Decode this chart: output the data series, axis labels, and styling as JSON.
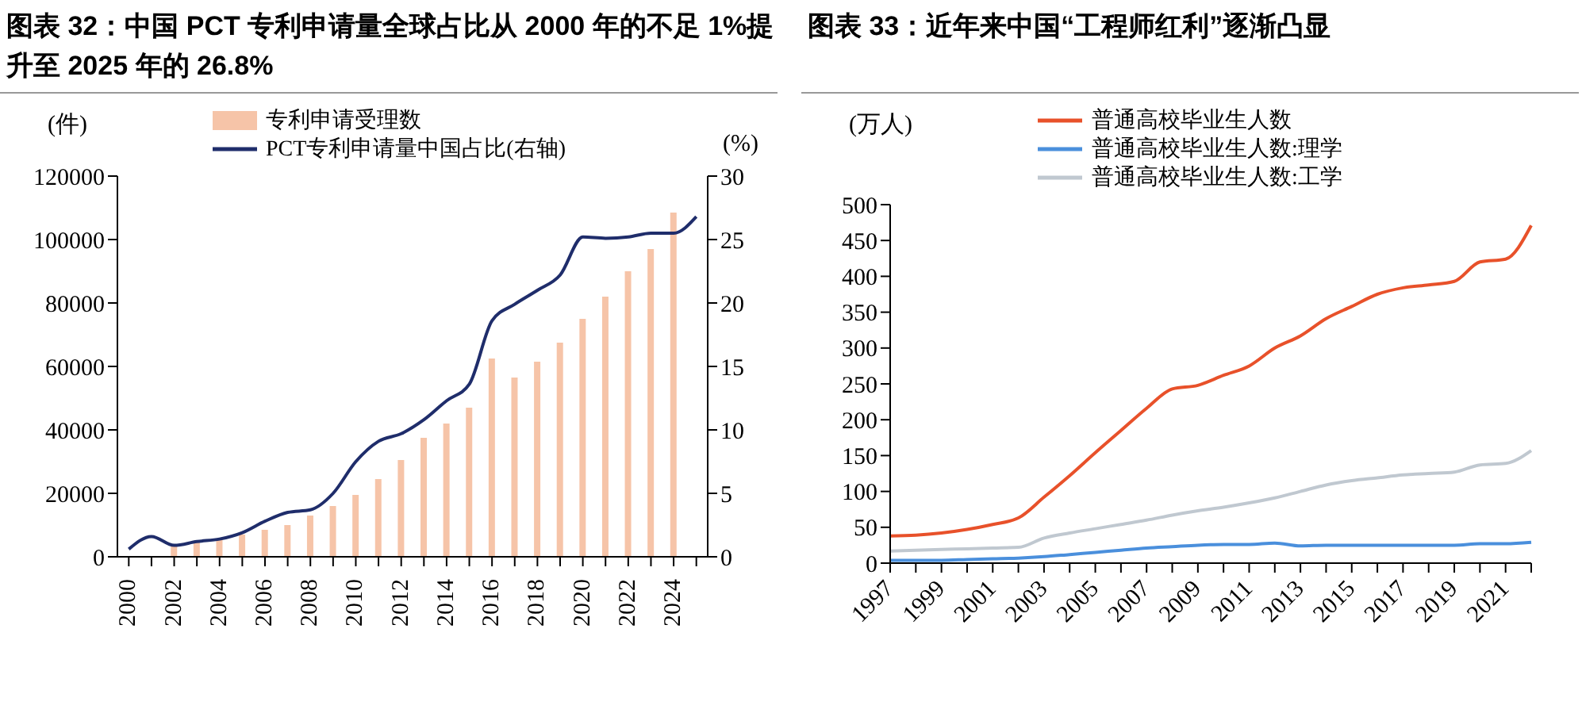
{
  "chart_data": [
    {
      "type": "bar",
      "title": "图表 32：中国 PCT 专利申请量全球占比从 2000 年的不足 1%提升至 2025 年的 26.8%",
      "ylabel": "(件)",
      "y2label": "(%)",
      "categories": [
        "2000",
        null,
        "2002",
        null,
        "2004",
        null,
        "2006",
        null,
        "2008",
        null,
        "2010",
        null,
        "2012",
        null,
        "2014",
        null,
        "2016",
        null,
        "2018",
        null,
        "2020",
        null,
        "2022",
        null,
        "2024",
        null
      ],
      "series": [
        {
          "name": "专利申请受理数",
          "color": "#f6c4a8",
          "values": [
            null,
            null,
            3500,
            5000,
            5500,
            7000,
            8500,
            10000,
            13000,
            16000,
            19500,
            24500,
            30500,
            37500,
            42000,
            47000,
            62500,
            56500,
            61500,
            67500,
            75000,
            82000,
            90000,
            97000,
            108500,
            null
          ]
        },
        {
          "name": "PCT专利申请量中国占比(右轴)",
          "type": "line",
          "axis": "y2",
          "color": "#1f2d6b",
          "values": [
            0.6,
            1.6,
            0.9,
            1.2,
            1.4,
            1.9,
            2.8,
            3.5,
            3.7,
            5.0,
            7.5,
            9.1,
            9.7,
            10.8,
            12.3,
            13.6,
            18.6,
            19.9,
            21.0,
            22.2,
            25.2,
            25.1,
            25.2,
            25.5,
            25.5,
            26.8
          ]
        }
      ],
      "ylim": [
        0,
        120000
      ],
      "yticks": [
        0,
        20000,
        40000,
        60000,
        80000,
        100000,
        120000
      ],
      "y2lim": [
        0,
        30
      ],
      "y2ticks": [
        0,
        5,
        10,
        15,
        20,
        25,
        30
      ],
      "legend": "top",
      "marker": "none"
    },
    {
      "type": "line",
      "title": "图表 33：近年来中国“工程师红利”逐渐凸显",
      "ylabel": "(万人)",
      "categories": [
        "1997",
        null,
        "1999",
        null,
        "2001",
        null,
        "2003",
        null,
        "2005",
        null,
        "2007",
        null,
        "2009",
        null,
        "2011",
        null,
        "2013",
        null,
        "2015",
        null,
        "2017",
        null,
        "2019",
        null,
        "2021",
        null
      ],
      "series": [
        {
          "name": "普通高校毕业生人数",
          "color": "#e8512a",
          "values": [
            38,
            39,
            42,
            47,
            54,
            63,
            92,
            122,
            154,
            185,
            216,
            243,
            248,
            262,
            275,
            300,
            317,
            341,
            358,
            375,
            384,
            388,
            393,
            420,
            424,
            471
          ]
        },
        {
          "name": "普通高校毕业生人数:理学",
          "color": "#4a8fdc",
          "values": [
            4,
            4,
            4,
            5,
            6,
            7,
            9,
            12,
            15,
            18,
            21,
            23,
            25,
            26,
            26,
            28,
            24,
            25,
            25,
            25,
            25,
            25,
            25,
            27,
            27,
            29
          ]
        },
        {
          "name": "普通高校毕业生人数:工学",
          "color": "#c0c8d0",
          "values": [
            17,
            18,
            19,
            20,
            21,
            22,
            35,
            42,
            48,
            54,
            60,
            67,
            73,
            78,
            84,
            91,
            100,
            109,
            115,
            119,
            123,
            125,
            127,
            137,
            139,
            157
          ]
        }
      ],
      "ylim": [
        0,
        500
      ],
      "yticks": [
        0,
        50,
        100,
        150,
        200,
        250,
        300,
        350,
        400,
        450,
        500
      ],
      "legend": "top",
      "marker": "none"
    }
  ]
}
